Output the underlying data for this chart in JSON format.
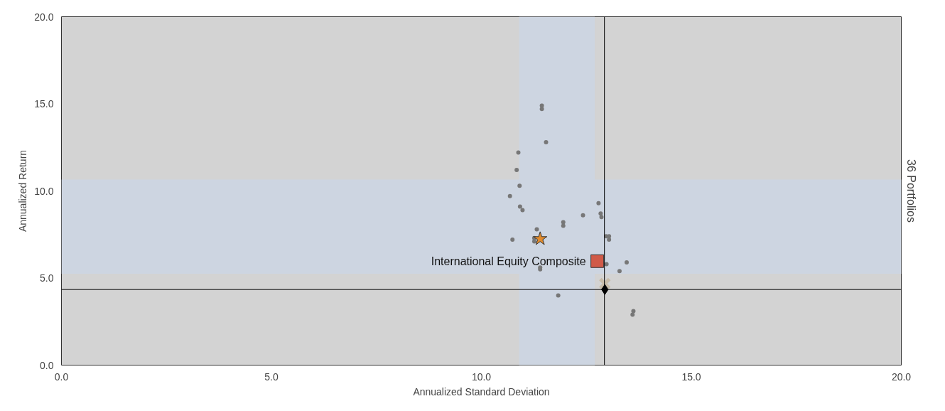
{
  "chart_data": {
    "type": "scatter",
    "xlabel": "Annualized Standard Deviation",
    "ylabel": "Annualized Return",
    "y2label": "36 Portfolios",
    "xlim": [
      0,
      20
    ],
    "ylim": [
      0,
      20
    ],
    "xticks": [
      {
        "value": 0,
        "label": "0.0"
      },
      {
        "value": 5,
        "label": "5.0"
      },
      {
        "value": 10,
        "label": "10.0"
      },
      {
        "value": 15,
        "label": "15.0"
      },
      {
        "value": 20,
        "label": "20.0"
      }
    ],
    "yticks": [
      {
        "value": 0,
        "label": "0.0"
      },
      {
        "value": 5,
        "label": "5.0"
      },
      {
        "value": 10,
        "label": "10.0"
      },
      {
        "value": 15,
        "label": "15.0"
      },
      {
        "value": 20,
        "label": "20.0"
      }
    ],
    "grid": false,
    "legend": false,
    "bands": [
      {
        "axis": "x",
        "from": 10.9,
        "to": 12.7,
        "color": "#cdd5e1"
      },
      {
        "axis": "y",
        "from": 5.25,
        "to": 10.65,
        "color": "#cdd5e1"
      }
    ],
    "ref_lines": [
      {
        "axis": "x",
        "value": 12.93,
        "color": "#000000"
      },
      {
        "axis": "y",
        "value": 4.34,
        "color": "#000000"
      }
    ],
    "series": [
      {
        "color": "#777777",
        "marker": "circle",
        "x": [
          11.44,
          11.44,
          11.54,
          10.88,
          10.84,
          10.91,
          10.68,
          10.92,
          10.98,
          12.79,
          12.42,
          12.84,
          12.86,
          11.95,
          11.95,
          11.32,
          10.74,
          11.26,
          11.26,
          12.97,
          13.04,
          13.04,
          12.98,
          13.46,
          13.29,
          11.4,
          11.4,
          11.83,
          13.62,
          13.6
        ],
        "values": [
          14.9,
          14.7,
          12.8,
          12.2,
          11.2,
          10.3,
          9.7,
          9.1,
          8.9,
          9.3,
          8.6,
          8.7,
          8.5,
          8.2,
          8.0,
          7.8,
          7.2,
          7.3,
          7.1,
          7.4,
          7.4,
          7.2,
          5.8,
          5.9,
          5.4,
          5.6,
          5.5,
          4.0,
          3.1,
          2.9
        ]
      },
      {
        "color": "#e08a2c",
        "marker": "star",
        "x": [
          11.4
        ],
        "values": [
          7.25
        ]
      },
      {
        "name": "International Equity Composite",
        "color": "#d05a48",
        "marker": "square",
        "x": [
          12.76
        ],
        "values": [
          5.97
        ]
      },
      {
        "color": "#c8bca8",
        "marker": "cross",
        "x": [
          12.94
        ],
        "values": [
          4.68
        ]
      },
      {
        "color": "#000000",
        "marker": "diamond",
        "x": [
          12.94
        ],
        "values": [
          4.34
        ]
      }
    ]
  }
}
